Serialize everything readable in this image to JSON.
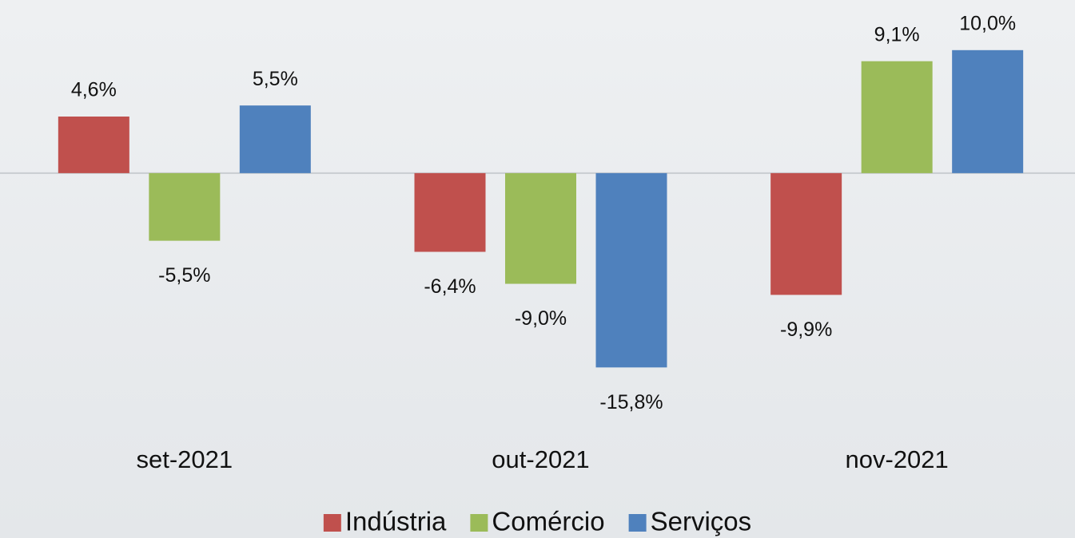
{
  "chart_data": {
    "type": "bar",
    "categories": [
      "set-2021",
      "out-2021",
      "nov-2021"
    ],
    "series": [
      {
        "name": "Indústria",
        "color": "#c0504d",
        "values": [
          4.6,
          -6.4,
          -9.9
        ],
        "value_labels": [
          "4,6%",
          "-6,4%",
          "-9,9%"
        ]
      },
      {
        "name": "Comércio",
        "color": "#9bbb59",
        "values": [
          -5.5,
          -9.0,
          9.1
        ],
        "value_labels": [
          "-5,5%",
          "-9,0%",
          "9,1%"
        ]
      },
      {
        "name": "Serviços",
        "color": "#4f81bd",
        "values": [
          5.5,
          -15.8,
          10.0
        ],
        "value_labels": [
          "5,5%",
          "-15,8%",
          "10,0%"
        ]
      }
    ],
    "ylim": [
      -16,
      12
    ],
    "legend": "bottom"
  }
}
